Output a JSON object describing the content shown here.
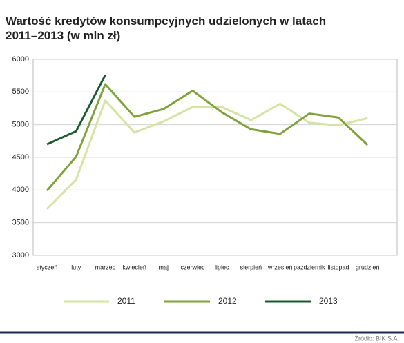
{
  "chart_data": {
    "type": "line",
    "title": "Wartość kredytów konsumpcyjnych udzielonych w latach 2011–2013 (w mln zł)",
    "categories": [
      "styczeń",
      "luty",
      "marzec",
      "kwiecień",
      "maj",
      "czerwiec",
      "lipiec",
      "sierpień",
      "wrzesień",
      "październik",
      "listopad",
      "grudzień"
    ],
    "series": [
      {
        "name": "2011",
        "color": "#d5e3a3",
        "values": [
          3710,
          4160,
          5370,
          4880,
          5050,
          5270,
          5270,
          5070,
          5320,
          5030,
          4990,
          5100
        ]
      },
      {
        "name": "2012",
        "color": "#7fa23d",
        "values": [
          3990,
          4510,
          5620,
          5120,
          5240,
          5520,
          5190,
          4930,
          4860,
          5170,
          5110,
          4690
        ]
      },
      {
        "name": "2013",
        "color": "#1e5a2f",
        "values": [
          4700,
          4900,
          5760,
          null,
          null,
          null,
          null,
          null,
          null,
          null,
          null,
          null
        ]
      }
    ],
    "ylim": [
      3000,
      6000
    ],
    "yticks": [
      3000,
      3500,
      4000,
      4500,
      5000,
      5500,
      6000
    ],
    "grid": true,
    "source": "Źródło: BIK S.A."
  }
}
